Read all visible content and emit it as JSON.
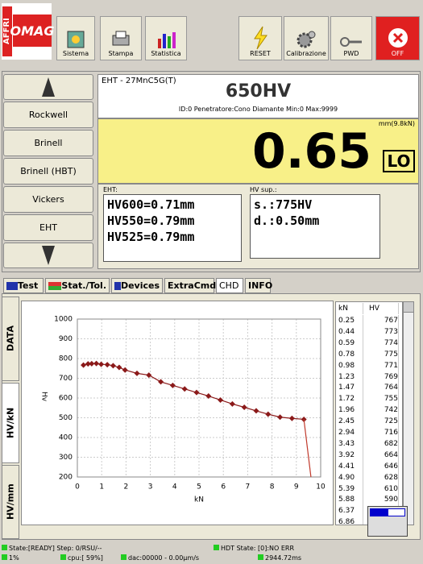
{
  "toolbar": {
    "logo_side": "AFFRI",
    "logo": "OMAG",
    "buttons_left": [
      "Sistema",
      "Stampa",
      "Statistica"
    ],
    "buttons_right": [
      "RESET",
      "Calibrazione",
      "PWD",
      "OFF"
    ]
  },
  "nav": [
    "Rockwell",
    "Brinell",
    "Brinell (HBT)",
    "Vickers",
    "EHT"
  ],
  "panel": {
    "title": "EHT - 27MnC5G(T)",
    "hardness": "650HV",
    "info": "ID:0 Penetratore:Cono Diamante Min:0 Max:9999",
    "unit": "mm(9.8kN)",
    "reading": "0.65",
    "flag": "LO",
    "eht_label": "EHT:",
    "eht_lines": [
      "HV600=0.71mm",
      "HV550=0.79mm",
      "HV525=0.79mm"
    ],
    "hvsup_label": "HV sup.:",
    "hvsup_lines": [
      "s.:775HV",
      "d.:0.50mm"
    ]
  },
  "tabs": [
    "Test",
    "Stat./Tol.",
    "Devices",
    "ExtraCmd",
    "CHD",
    "INFO"
  ],
  "side_tabs": [
    "DATA",
    "HV/kN",
    "HV/mm"
  ],
  "chart_data": {
    "type": "line",
    "xlabel": "kN",
    "ylabel": "Hv",
    "xlim": [
      0,
      10
    ],
    "ylim": [
      200,
      1000
    ],
    "xticks": [
      0,
      1,
      2,
      3,
      4,
      5,
      6,
      7,
      8,
      9,
      10
    ],
    "yticks": [
      200,
      300,
      400,
      500,
      600,
      700,
      800,
      900,
      1000
    ],
    "grid": true,
    "series": [
      {
        "color": "#8b1a1a",
        "x": [
          0.25,
          0.44,
          0.59,
          0.78,
          0.98,
          1.23,
          1.47,
          1.72,
          1.96,
          2.45,
          2.94,
          3.43,
          3.92,
          4.41,
          4.9,
          5.39,
          5.88,
          6.37,
          6.86,
          7.35,
          7.84,
          8.33,
          8.82,
          9.31
        ],
        "values": [
          767,
          773,
          774,
          775,
          771,
          769,
          764,
          755,
          742,
          725,
          716,
          682,
          664,
          646,
          628,
          610,
          590,
          570,
          553,
          535,
          518,
          503,
          497,
          492
        ]
      },
      {
        "color": "#c0392b",
        "x": [
          9.31,
          9.6
        ],
        "values": [
          492,
          200
        ]
      }
    ]
  },
  "table": {
    "header": [
      "kN",
      "HV"
    ],
    "rows": [
      [
        "0.25",
        "767"
      ],
      [
        "0.44",
        "773"
      ],
      [
        "0.59",
        "774"
      ],
      [
        "0.78",
        "775"
      ],
      [
        "0.98",
        "771"
      ],
      [
        "1.23",
        "769"
      ],
      [
        "1.47",
        "764"
      ],
      [
        "1.72",
        "755"
      ],
      [
        "1.96",
        "742"
      ],
      [
        "2.45",
        "725"
      ],
      [
        "2.94",
        "716"
      ],
      [
        "3.43",
        "682"
      ],
      [
        "3.92",
        "664"
      ],
      [
        "4.41",
        "646"
      ],
      [
        "4.90",
        "628"
      ],
      [
        "5.39",
        "610"
      ],
      [
        "5.88",
        "590"
      ],
      [
        "6.37",
        null
      ],
      [
        "6.86",
        null
      ]
    ]
  },
  "status": {
    "state": "State:[READY] Step: 0/RSU/--",
    "hdt": "HDT State: [0]:NO ERR",
    "pct": "1%",
    "cpu": "cpu:[ 59%]",
    "dac": "dac:00000 - 0.00µm/s",
    "time": "2944.72ms"
  }
}
